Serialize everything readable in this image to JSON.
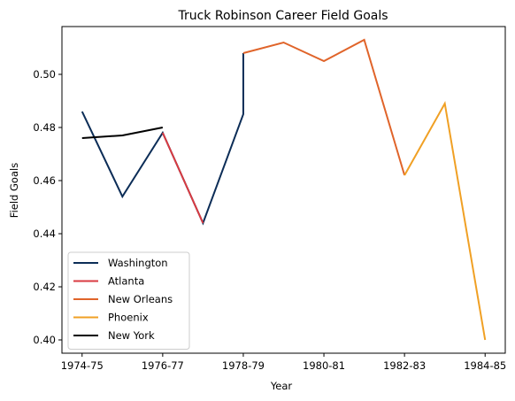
{
  "chart_data": {
    "type": "line",
    "title": "Truck Robinson Career Field Goals",
    "xlabel": "Year",
    "ylabel": "Field Goals",
    "x_tick_labels": [
      "1974-75",
      "1976-77",
      "1978-79",
      "1980-81",
      "1982-83",
      "1984-85"
    ],
    "y_ticks": [
      0.4,
      0.42,
      0.44,
      0.46,
      0.48,
      0.5
    ],
    "ylim": [
      0.395,
      0.518
    ],
    "grid": false,
    "legend_position": "lower-left",
    "series": [
      {
        "name": "Washington",
        "color": "#0c2d57",
        "points": [
          [
            "1974-75",
            0.486
          ],
          [
            "1975-76",
            0.454
          ],
          [
            "1976-77",
            0.478
          ],
          [
            "1977-78",
            0.444
          ],
          [
            "1978-79",
            0.485
          ],
          [
            "1978-79",
            0.508
          ]
        ]
      },
      {
        "name": "Atlanta",
        "color": "#d93a41",
        "points": [
          [
            "1976-77",
            0.478
          ],
          [
            "1977-78",
            0.444
          ]
        ]
      },
      {
        "name": "New Orleans",
        "color": "#e0642a",
        "points": [
          [
            "1978-79",
            0.508
          ],
          [
            "1979-80",
            0.512
          ],
          [
            "1980-81",
            0.505
          ],
          [
            "1981-82",
            0.513
          ],
          [
            "1982-83",
            0.462
          ]
        ]
      },
      {
        "name": "Phoenix",
        "color": "#f0a024",
        "points": [
          [
            "1982-83",
            0.462
          ],
          [
            "1983-84",
            0.489
          ],
          [
            "1984-85",
            0.4
          ]
        ]
      },
      {
        "name": "New York",
        "color": "#000000",
        "points": [
          [
            "1974-75",
            0.476
          ],
          [
            "1975-76",
            0.477
          ],
          [
            "1976-77",
            0.48
          ]
        ]
      }
    ]
  }
}
